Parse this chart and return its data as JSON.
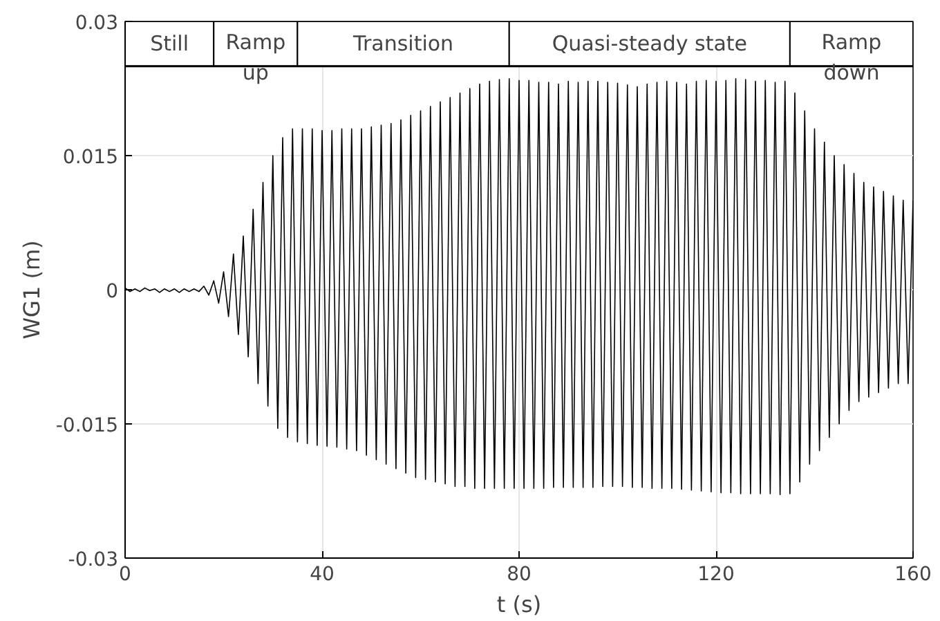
{
  "chart_data": {
    "type": "line",
    "xlabel": "t (s)",
    "ylabel": "WG1 (m)",
    "xlim": [
      0,
      160
    ],
    "xticks": [
      0,
      40,
      80,
      120,
      160
    ],
    "ylim": [
      -0.03,
      0.03
    ],
    "yticks": [
      -0.03,
      -0.015,
      0,
      0.015,
      0.03
    ],
    "grid": true,
    "line_style": "solid",
    "ref_lines": [
      {
        "axis": "y",
        "value": 0.025,
        "color": "#000000"
      }
    ],
    "bands": [
      {
        "axis": "x",
        "from": 0,
        "to": 18,
        "label": "Still",
        "color": "#ffffff"
      },
      {
        "axis": "x",
        "from": 18,
        "to": 35,
        "label": "Ramp\nup",
        "color": "#ffffff"
      },
      {
        "axis": "x",
        "from": 35,
        "to": 78,
        "label": "Transition",
        "color": "#ffffff"
      },
      {
        "axis": "x",
        "from": 78,
        "to": 135,
        "label": "Quasi-steady state",
        "color": "#ffffff"
      },
      {
        "axis": "x",
        "from": 135,
        "to": 160,
        "label": "Ramp\ndown",
        "color": "#ffffff"
      }
    ],
    "series": [
      {
        "color": "#000000",
        "x": [
          0,
          1,
          2,
          3,
          4,
          5,
          6,
          7,
          8,
          9,
          10,
          11,
          12,
          13,
          14,
          15,
          16,
          17,
          18,
          19,
          20,
          21,
          22,
          23,
          24,
          25,
          26,
          27,
          28,
          29,
          30,
          31,
          32,
          33,
          34,
          35,
          36,
          37,
          38,
          39,
          40,
          41,
          42,
          43,
          44,
          45,
          46,
          47,
          48,
          49,
          50,
          51,
          52,
          53,
          54,
          55,
          56,
          57,
          58,
          59,
          60,
          61,
          62,
          63,
          64,
          65,
          66,
          67,
          68,
          69,
          70,
          71,
          72,
          73,
          74,
          75,
          76,
          77,
          78,
          79,
          80,
          81,
          82,
          83,
          84,
          85,
          86,
          87,
          88,
          89,
          90,
          91,
          92,
          93,
          94,
          95,
          96,
          97,
          98,
          99,
          100,
          101,
          102,
          103,
          104,
          105,
          106,
          107,
          108,
          109,
          110,
          111,
          112,
          113,
          114,
          115,
          116,
          117,
          118,
          119,
          120,
          121,
          122,
          123,
          124,
          125,
          126,
          127,
          128,
          129,
          130,
          131,
          132,
          133,
          134,
          135,
          136,
          137,
          138,
          139,
          140,
          141,
          142,
          143,
          144,
          145,
          146,
          147,
          148,
          149,
          150,
          151,
          152,
          153,
          154,
          155,
          156,
          157,
          158,
          159,
          160
        ],
        "values": [
          0.0002,
          -0.0002,
          0.0001,
          -0.0002,
          0.0002,
          -0.0001,
          0.0001,
          -0.0003,
          0.0001,
          -0.0002,
          0.0001,
          -0.0003,
          0.0001,
          -0.0002,
          0.0001,
          -0.0002,
          0.0004,
          -0.0006,
          0.001,
          -0.0015,
          0.002,
          -0.003,
          0.004,
          -0.005,
          0.006,
          -0.0075,
          0.009,
          -0.0105,
          0.012,
          -0.013,
          0.015,
          -0.0155,
          0.017,
          -0.0165,
          0.018,
          -0.017,
          0.018,
          -0.0172,
          0.018,
          -0.0174,
          0.0178,
          -0.0175,
          0.0178,
          -0.0176,
          0.018,
          -0.0178,
          0.018,
          -0.018,
          0.018,
          -0.0185,
          0.0182,
          -0.019,
          0.0184,
          -0.0195,
          0.0186,
          -0.02,
          0.019,
          -0.0205,
          0.0195,
          -0.021,
          0.02,
          -0.0212,
          0.0205,
          -0.0215,
          0.021,
          -0.0217,
          0.0215,
          -0.022,
          0.022,
          -0.022,
          0.0225,
          -0.0222,
          0.023,
          -0.0222,
          0.0233,
          -0.0222,
          0.0235,
          -0.0222,
          0.0236,
          -0.0222,
          0.0234,
          -0.0222,
          0.0234,
          -0.0222,
          0.0232,
          -0.0222,
          0.0232,
          -0.0221,
          0.023,
          -0.0221,
          0.0233,
          -0.0221,
          0.0232,
          -0.0221,
          0.0233,
          -0.0221,
          0.0233,
          -0.022,
          0.0232,
          -0.022,
          0.0231,
          -0.022,
          0.0229,
          -0.0221,
          0.0227,
          -0.0221,
          0.023,
          -0.0222,
          0.0232,
          -0.0222,
          0.0233,
          -0.0222,
          0.0232,
          -0.0223,
          0.023,
          -0.0224,
          0.0233,
          -0.0225,
          0.0234,
          -0.0226,
          0.0233,
          -0.0227,
          0.0234,
          -0.0227,
          0.0236,
          -0.0228,
          0.0235,
          -0.0228,
          0.0233,
          -0.0228,
          0.0234,
          -0.0228,
          0.0232,
          -0.0229,
          0.0233,
          -0.0228,
          0.022,
          -0.0215,
          0.02,
          -0.0195,
          0.018,
          -0.018,
          0.0165,
          -0.0165,
          0.015,
          -0.015,
          0.014,
          -0.0135,
          0.013,
          -0.0125,
          0.012,
          -0.012,
          0.0115,
          -0.0115,
          0.011,
          -0.011,
          0.0105,
          -0.0105,
          0.01,
          -0.0105,
          0.01
        ]
      }
    ]
  }
}
